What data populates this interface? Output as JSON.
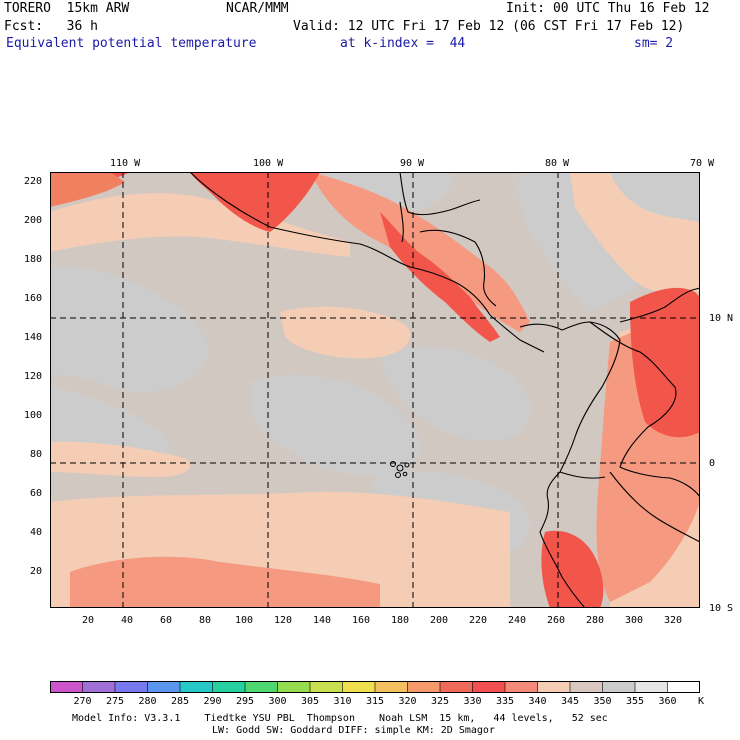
{
  "header": {
    "line1_left": "TORERO  15km ARW",
    "line1_center": "NCAR/MMM",
    "line1_right": "Init: 00 UTC Thu 16 Feb 12",
    "line2_left": "Fcst:   36 h",
    "line2_right": "Valid: 12 UTC Fri 17 Feb 12 (06 CST Fri 17 Feb 12)",
    "line3_field": "Equivalent potential temperature",
    "line3_level": "at k-index =  44",
    "line3_smooth": "sm= 2"
  },
  "map": {
    "top_lon_labels": [
      "110 W",
      "100 W",
      "90 W",
      "80 W",
      "70 W"
    ],
    "right_lat_labels": [
      "10 N",
      "0",
      "10 S"
    ],
    "left_grid_labels": [
      "220",
      "200",
      "180",
      "160",
      "140",
      "120",
      "100",
      "80",
      "60",
      "40",
      "20"
    ],
    "bottom_grid_labels": [
      "20",
      "40",
      "60",
      "80",
      "100",
      "120",
      "140",
      "160",
      "180",
      "200",
      "220",
      "240",
      "260",
      "280",
      "300",
      "320"
    ]
  },
  "colorbar": {
    "labels": [
      "270",
      "275",
      "280",
      "285",
      "290",
      "295",
      "300",
      "305",
      "310",
      "315",
      "320",
      "325",
      "330",
      "335",
      "340",
      "345",
      "350",
      "355",
      "360"
    ],
    "unit": "K",
    "colors": [
      "#cc55cc",
      "#a070d8",
      "#7a7af0",
      "#5a96f0",
      "#28c8c8",
      "#28d0a0",
      "#50d870",
      "#96dc50",
      "#c8e050",
      "#f0e050",
      "#f5c060",
      "#f59a6a",
      "#f06a5a",
      "#f25050",
      "#f58a7a",
      "#f5cdb5",
      "#d8c8c0",
      "#cccccc",
      "#e6e6e6",
      "#ffffff"
    ]
  },
  "footer": {
    "line1": "Model Info: V3.3.1    Tiedtke YSU PBL  Thompson    Noah LSM  15 km,   44 levels,   52 sec",
    "line2": "LW: Godd SW: Goddard DIFF: simple KM: 2D Smagor"
  }
}
